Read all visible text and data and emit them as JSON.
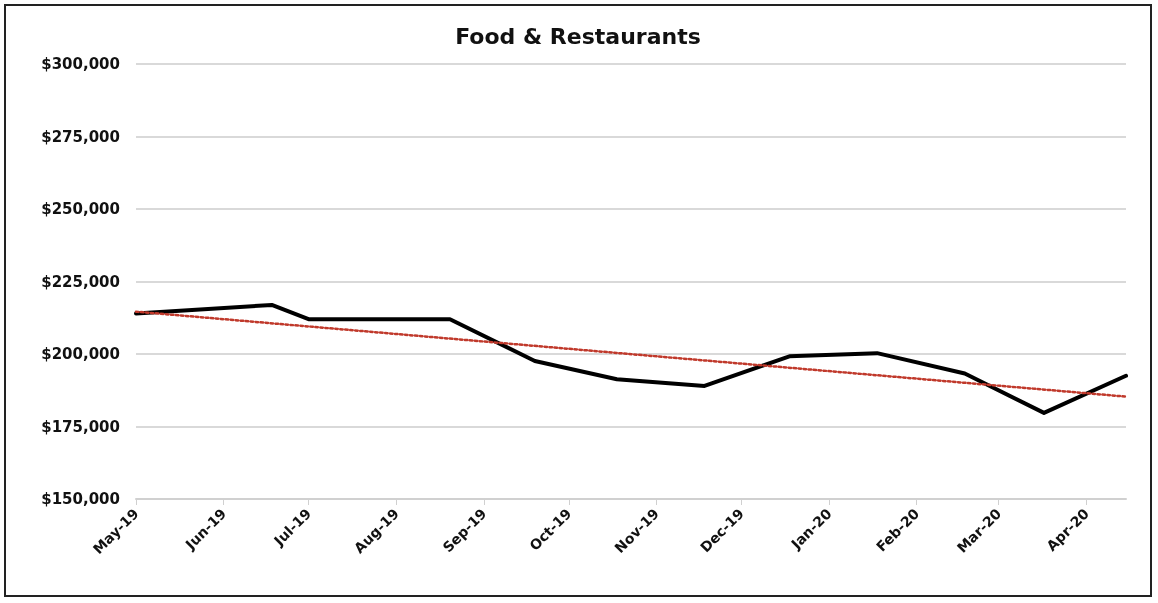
{
  "chart_data": {
    "type": "line",
    "title": "Food & Restaurants",
    "x": [
      "2019-05-01",
      "2019-06-18",
      "2019-07-01",
      "2019-08-20",
      "2019-09-19",
      "2019-10-18",
      "2019-11-18",
      "2019-12-18",
      "2020-01-18",
      "2020-02-18",
      "2020-03-17",
      "2020-04-15"
    ],
    "series": [
      {
        "color": "#000000",
        "values": [
          214000,
          216900,
          212000,
          212000,
          197600,
          191300,
          189000,
          199200,
          200300,
          193300,
          179700,
          192500
        ],
        "line_style": "solid"
      },
      {
        "type": "line",
        "color": "#c0392b",
        "x": [
          "2019-05-01",
          "2020-04-15"
        ],
        "values": [
          214600,
          185300
        ],
        "line_style": "dotted"
      }
    ],
    "xlim": [
      "2019-05-01",
      "2020-04-15"
    ],
    "xticks": [
      {
        "value": "2019-05-01",
        "label": "May-19"
      },
      {
        "value": "2019-06-01",
        "label": "Jun-19"
      },
      {
        "value": "2019-07-01",
        "label": "Jul-19"
      },
      {
        "value": "2019-08-01",
        "label": "Aug-19"
      },
      {
        "value": "2019-09-01",
        "label": "Sep-19"
      },
      {
        "value": "2019-10-01",
        "label": "Oct-19"
      },
      {
        "value": "2019-11-01",
        "label": "Nov-19"
      },
      {
        "value": "2019-12-01",
        "label": "Dec-19"
      },
      {
        "value": "2020-01-01",
        "label": "Jan-20"
      },
      {
        "value": "2020-02-01",
        "label": "Feb-20"
      },
      {
        "value": "2020-03-01",
        "label": "Mar-20"
      },
      {
        "value": "2020-04-01",
        "label": "Apr-20"
      }
    ],
    "ylim": [
      150000,
      300000
    ],
    "yticks": [
      {
        "value": 150000,
        "label": "$150,000"
      },
      {
        "value": 175000,
        "label": "$175,000"
      },
      {
        "value": 200000,
        "label": "$200,000"
      },
      {
        "value": 225000,
        "label": "$225,000"
      },
      {
        "value": 250000,
        "label": "$250,000"
      },
      {
        "value": 275000,
        "label": "$275,000"
      },
      {
        "value": 300000,
        "label": "$300,000"
      }
    ],
    "grid": "y",
    "marker": "none"
  }
}
